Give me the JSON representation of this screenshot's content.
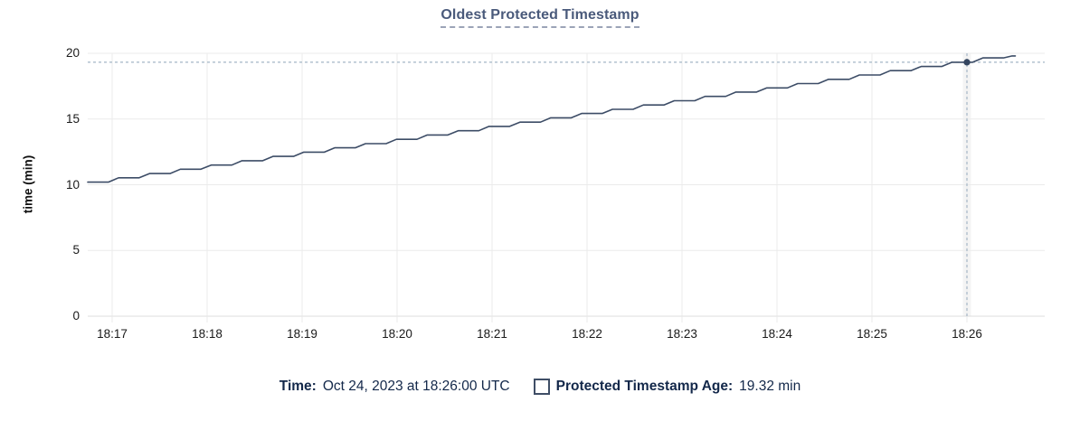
{
  "title": "Oldest Protected Timestamp",
  "y_axis": {
    "label": "time (min)",
    "ticks": [
      20,
      15,
      10,
      5,
      0
    ],
    "min": 0,
    "max": 20
  },
  "x_axis": {
    "ticks": [
      "18:17",
      "18:18",
      "18:19",
      "18:20",
      "18:21",
      "18:22",
      "18:23",
      "18:24",
      "18:25",
      "18:26"
    ]
  },
  "legend": {
    "time_label": "Time:",
    "time_value": "Oct 24, 2023 at 18:26:00 UTC",
    "age_label": "Protected Timestamp Age:",
    "age_value": "19.32 min"
  },
  "colors": {
    "line": "#3c4c66",
    "marker": "#34455f",
    "grid": "#ebebeb",
    "axis_line": "#dddddd",
    "crosshair": "#a4b6c5",
    "hover_band": "#f4f4f4",
    "title_text": "#4a5a7b",
    "tick_text": "#1a1a1a",
    "legend_text": "#13284a",
    "checkbox_border": "#3f4e66"
  },
  "chart_data": {
    "type": "line",
    "title": "Oldest Protected Timestamp",
    "ylabel": "time (min)",
    "ylim": [
      0,
      20
    ],
    "grid": true,
    "legend_position": "bottom",
    "x_tick_labels": [
      "18:17",
      "18:18",
      "18:19",
      "18:20",
      "18:21",
      "18:22",
      "18:23",
      "18:24",
      "18:25",
      "18:26"
    ],
    "x_origin": "18:16:45",
    "x_end": "18:26:50",
    "series": [
      {
        "name": "Protected Timestamp Age",
        "note": "stepped line; points are [seconds after 18:16:45, minutes]",
        "points": [
          [
            0,
            10.2
          ],
          [
            13,
            10.2
          ],
          [
            19.5,
            10.53
          ],
          [
            32.5,
            10.53
          ],
          [
            39,
            10.85
          ],
          [
            52,
            10.85
          ],
          [
            58.5,
            11.18
          ],
          [
            71.5,
            11.18
          ],
          [
            78,
            11.5
          ],
          [
            91,
            11.5
          ],
          [
            97.5,
            11.83
          ],
          [
            110.5,
            11.83
          ],
          [
            117,
            12.16
          ],
          [
            130,
            12.16
          ],
          [
            136.5,
            12.48
          ],
          [
            149.5,
            12.48
          ],
          [
            156,
            12.81
          ],
          [
            169,
            12.81
          ],
          [
            175.5,
            13.13
          ],
          [
            188.5,
            13.13
          ],
          [
            195,
            13.46
          ],
          [
            208,
            13.46
          ],
          [
            214.5,
            13.79
          ],
          [
            227.5,
            13.79
          ],
          [
            234,
            14.11
          ],
          [
            247,
            14.11
          ],
          [
            253.5,
            14.44
          ],
          [
            266.5,
            14.44
          ],
          [
            273,
            14.76
          ],
          [
            286,
            14.76
          ],
          [
            292.5,
            15.09
          ],
          [
            305.5,
            15.09
          ],
          [
            312,
            15.42
          ],
          [
            325,
            15.42
          ],
          [
            331.5,
            15.74
          ],
          [
            344.5,
            15.74
          ],
          [
            351,
            16.07
          ],
          [
            364,
            16.07
          ],
          [
            370.5,
            16.39
          ],
          [
            383.5,
            16.39
          ],
          [
            390,
            16.72
          ],
          [
            403,
            16.72
          ],
          [
            409.5,
            17.05
          ],
          [
            422.5,
            17.05
          ],
          [
            429,
            17.37
          ],
          [
            442,
            17.37
          ],
          [
            448.5,
            17.7
          ],
          [
            461.5,
            17.7
          ],
          [
            468,
            18.02
          ],
          [
            481,
            18.02
          ],
          [
            487.5,
            18.35
          ],
          [
            500.5,
            18.35
          ],
          [
            507,
            18.68
          ],
          [
            520,
            18.68
          ],
          [
            526.5,
            19.0
          ],
          [
            539.5,
            19.0
          ],
          [
            546,
            19.32
          ],
          [
            559,
            19.32
          ],
          [
            565.5,
            19.65
          ],
          [
            578.5,
            19.65
          ],
          [
            584,
            19.8
          ],
          [
            586,
            19.8
          ]
        ]
      }
    ],
    "crosshair": {
      "x": "18:26:00",
      "x_tick": "18:26",
      "y": 19.32
    }
  }
}
